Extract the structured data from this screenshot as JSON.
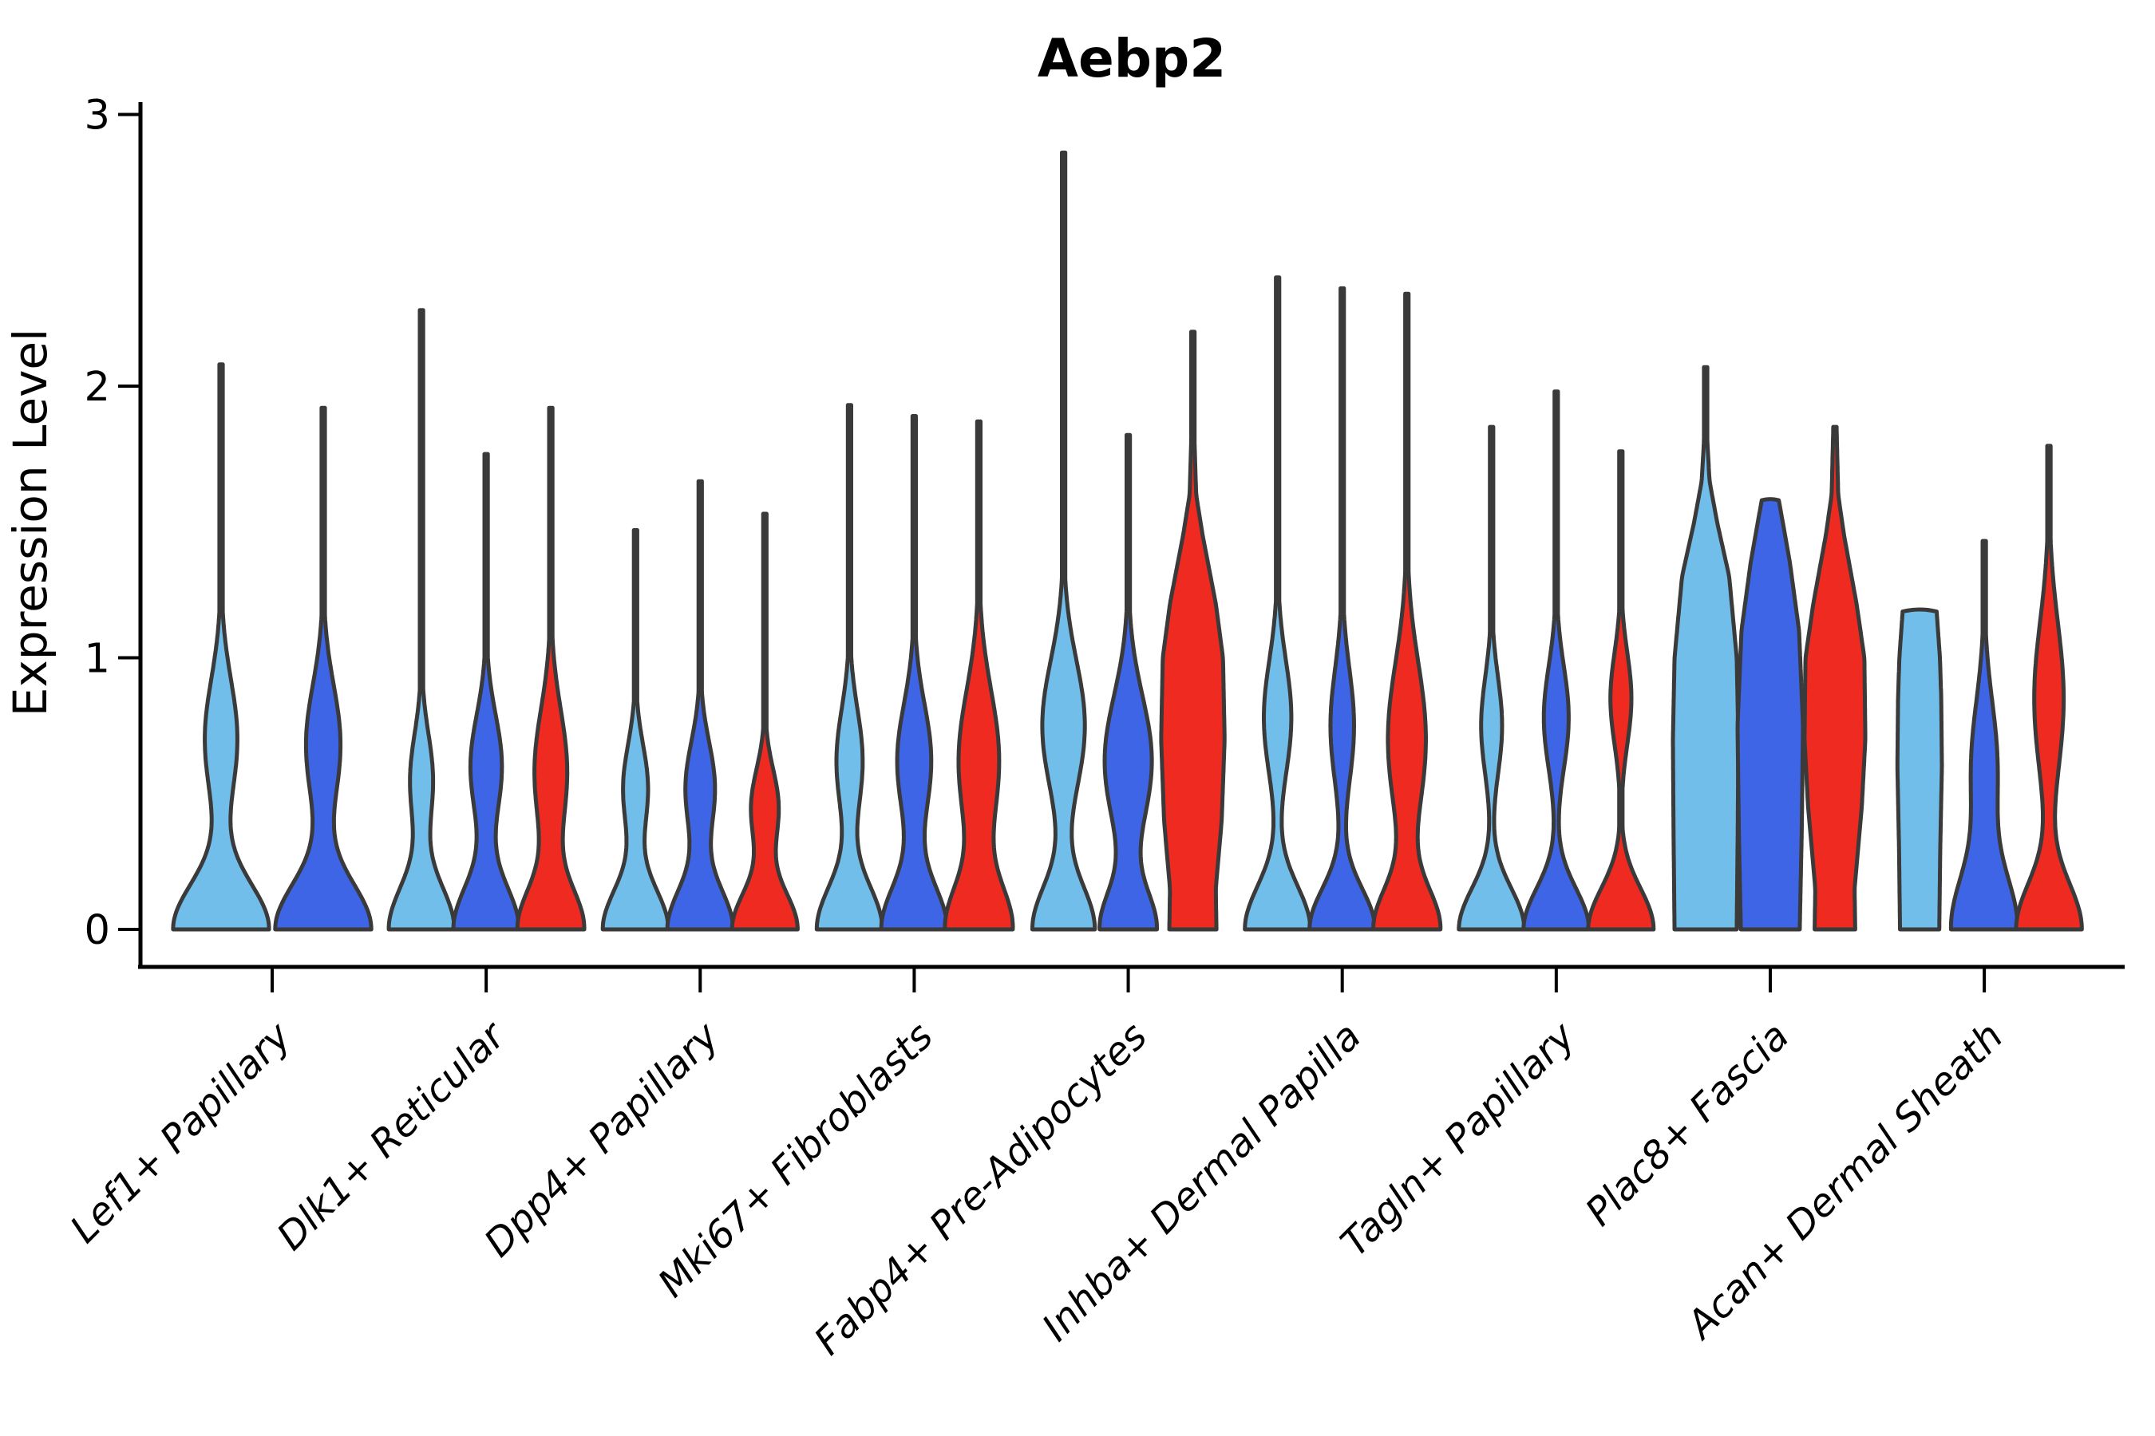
{
  "title": "Aebp2",
  "ylabel": "Expression Level",
  "chart_data": {
    "type": "violin",
    "title": "Aebp2",
    "xlabel": "",
    "ylabel": "Expression Level",
    "ylim": [
      0,
      3
    ],
    "yticks": [
      "0",
      "1",
      "2",
      "3"
    ],
    "grid": false,
    "legend": "none",
    "splits": [
      {
        "name": "light-blue",
        "color": "#72BEEA"
      },
      {
        "name": "blue",
        "color": "#3D65E6"
      },
      {
        "name": "red",
        "color": "#EE2A21"
      }
    ],
    "outline_color": "#3a3a3a",
    "axis_color": "#000000",
    "groups": [
      {
        "label": "Lef1+ Papillary",
        "violins": [
          {
            "split": 0,
            "max": 2.08,
            "base": [
              1.0,
              0.17
            ],
            "bumps": [
              [
                0.7,
                0.22,
                0.34
              ]
            ]
          },
          {
            "split": 1,
            "max": 1.92,
            "base": [
              1.0,
              0.17
            ],
            "bumps": [
              [
                0.68,
                0.22,
                0.36
              ]
            ]
          }
        ]
      },
      {
        "label": "Dlk1+ Reticular",
        "violins": [
          {
            "split": 0,
            "max": 2.28,
            "base": [
              1.0,
              0.16
            ],
            "bumps": [
              [
                0.55,
                0.17,
                0.35
              ]
            ]
          },
          {
            "split": 1,
            "max": 1.75,
            "base": [
              1.0,
              0.16
            ],
            "bumps": [
              [
                0.6,
                0.19,
                0.48
              ]
            ]
          },
          {
            "split": 2,
            "max": 1.92,
            "base": [
              1.0,
              0.15
            ],
            "bumps": [
              [
                0.58,
                0.23,
                0.5
              ]
            ]
          }
        ]
      },
      {
        "label": "Dpp4+ Papillary",
        "violins": [
          {
            "split": 0,
            "max": 1.47,
            "base": [
              1.0,
              0.15
            ],
            "bumps": [
              [
                0.52,
                0.16,
                0.38
              ]
            ]
          },
          {
            "split": 1,
            "max": 1.65,
            "base": [
              1.0,
              0.15
            ],
            "bumps": [
              [
                0.52,
                0.17,
                0.45
              ]
            ]
          },
          {
            "split": 2,
            "max": 1.53,
            "base": [
              1.0,
              0.14
            ],
            "bumps": [
              [
                0.45,
                0.14,
                0.42
              ]
            ]
          }
        ]
      },
      {
        "label": "Mki67+ Fibroblasts",
        "violins": [
          {
            "split": 0,
            "max": 1.93,
            "base": [
              1.0,
              0.16
            ],
            "bumps": [
              [
                0.62,
                0.19,
                0.4
              ]
            ]
          },
          {
            "split": 1,
            "max": 1.89,
            "base": [
              1.0,
              0.16
            ],
            "bumps": [
              [
                0.62,
                0.21,
                0.52
              ]
            ]
          },
          {
            "split": 2,
            "max": 1.87,
            "base": [
              1.0,
              0.16
            ],
            "bumps": [
              [
                0.62,
                0.26,
                0.62
              ]
            ]
          }
        ]
      },
      {
        "label": "Fabp4+ Pre-Adipocytes",
        "violins": [
          {
            "split": 0,
            "max": 2.86,
            "base": [
              0.95,
              0.16
            ],
            "bumps": [
              [
                0.75,
                0.24,
                0.65
              ]
            ]
          },
          {
            "split": 1,
            "max": 1.82,
            "base": [
              0.85,
              0.14
            ],
            "bumps": [
              [
                0.62,
                0.24,
                0.72
              ]
            ]
          },
          {
            "split": 2,
            "max": 2.2,
            "pts": [
              [
                0,
                0.72
              ],
              [
                0.15,
                0.7
              ],
              [
                0.4,
                0.88
              ],
              [
                0.7,
                0.97
              ],
              [
                1.0,
                0.92
              ],
              [
                1.2,
                0.7
              ],
              [
                1.45,
                0.3
              ],
              [
                1.6,
                0.1
              ],
              [
                1.8,
                0.05
              ],
              [
                2.2,
                0.05
              ]
            ]
          }
        ]
      },
      {
        "label": "Inhba+ Dermal Papilla",
        "violins": [
          {
            "split": 0,
            "max": 2.4,
            "base": [
              1.0,
              0.16
            ],
            "bumps": [
              [
                0.78,
                0.21,
                0.42
              ]
            ]
          },
          {
            "split": 1,
            "max": 2.36,
            "base": [
              1.0,
              0.15
            ],
            "bumps": [
              [
                0.75,
                0.21,
                0.36
              ]
            ]
          },
          {
            "split": 2,
            "max": 2.34,
            "base": [
              1.0,
              0.15
            ],
            "bumps": [
              [
                0.7,
                0.28,
                0.58
              ]
            ]
          }
        ]
      },
      {
        "label": "Tagln+ Papillary",
        "violins": [
          {
            "split": 0,
            "max": 1.85,
            "base": [
              1.0,
              0.15
            ],
            "bumps": [
              [
                0.75,
                0.18,
                0.32
              ]
            ]
          },
          {
            "split": 1,
            "max": 1.98,
            "base": [
              1.0,
              0.15
            ],
            "bumps": [
              [
                0.78,
                0.19,
                0.38
              ]
            ]
          },
          {
            "split": 2,
            "max": 1.76,
            "base": [
              1.0,
              0.15
            ],
            "bumps": [
              [
                0.85,
                0.17,
                0.32
              ]
            ]
          }
        ]
      },
      {
        "label": "Plac8+ Fascia",
        "violins": [
          {
            "split": 0,
            "max": 2.07,
            "pts": [
              [
                0,
                0.95
              ],
              [
                0.35,
                0.98
              ],
              [
                0.7,
                1.0
              ],
              [
                1.0,
                0.95
              ],
              [
                1.3,
                0.72
              ],
              [
                1.5,
                0.35
              ],
              [
                1.65,
                0.12
              ],
              [
                1.8,
                0.05
              ],
              [
                2.07,
                0.05
              ]
            ]
          },
          {
            "split": 1,
            "max": 1.58,
            "cap": true,
            "pts": [
              [
                0,
                0.9
              ],
              [
                0.35,
                0.96
              ],
              [
                0.75,
                1.0
              ],
              [
                1.1,
                0.88
              ],
              [
                1.35,
                0.6
              ],
              [
                1.5,
                0.38
              ],
              [
                1.58,
                0.26
              ]
            ]
          },
          {
            "split": 2,
            "max": 1.85,
            "pts": [
              [
                0,
                0.62
              ],
              [
                0.15,
                0.6
              ],
              [
                0.45,
                0.82
              ],
              [
                0.7,
                0.93
              ],
              [
                1.0,
                0.9
              ],
              [
                1.2,
                0.66
              ],
              [
                1.45,
                0.28
              ],
              [
                1.6,
                0.1
              ],
              [
                1.85,
                0.05
              ]
            ]
          }
        ]
      },
      {
        "label": "Acan+ Dermal Sheath",
        "violins": [
          {
            "split": 0,
            "max": 1.17,
            "cap": true,
            "pts": [
              [
                0,
                0.6
              ],
              [
                0.3,
                0.63
              ],
              [
                0.6,
                0.68
              ],
              [
                0.85,
                0.66
              ],
              [
                1.0,
                0.62
              ],
              [
                1.17,
                0.52
              ]
            ]
          },
          {
            "split": 1,
            "max": 1.43,
            "base": [
              1.0,
              0.2
            ],
            "bumps": [
              [
                0.6,
                0.24,
                0.4
              ]
            ]
          },
          {
            "split": 2,
            "max": 1.78,
            "base": [
              1.0,
              0.17
            ],
            "bumps": [
              [
                0.85,
                0.28,
                0.45
              ]
            ]
          }
        ]
      }
    ]
  }
}
